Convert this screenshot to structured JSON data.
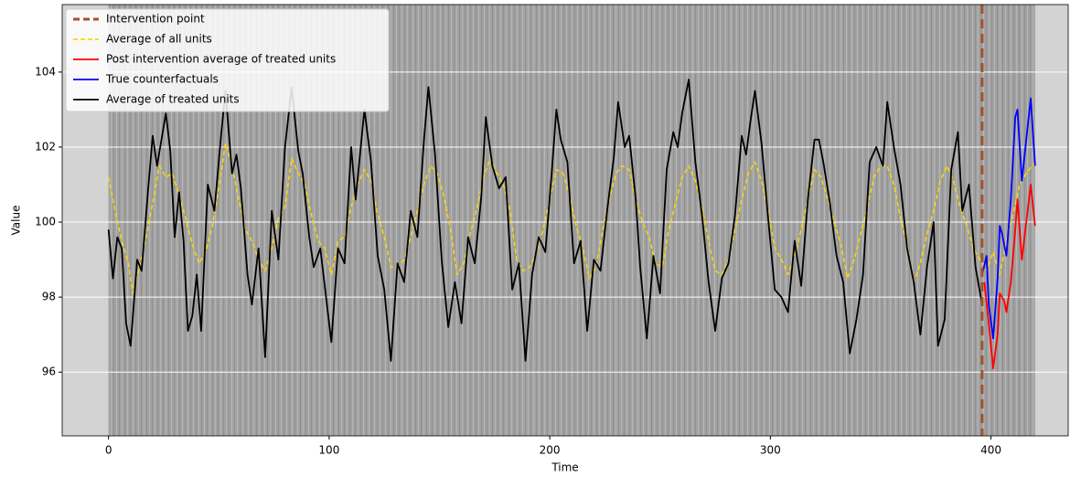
{
  "chart_data": {
    "type": "line",
    "xlabel": "Time",
    "ylabel": "Value",
    "xlim": [
      -21,
      435
    ],
    "ylim": [
      94.3,
      105.8
    ],
    "xticks": [
      0,
      100,
      200,
      300,
      400
    ],
    "yticks": [
      96,
      98,
      100,
      102,
      104
    ],
    "grid": true,
    "legend": "upper left",
    "intervention": {
      "name": "Intervention point",
      "x": 396,
      "color": "#a0522d"
    },
    "series": [
      {
        "name": "Average of all units",
        "color": "#ffd700",
        "dashed": true,
        "x": [
          0,
          3,
          6,
          9,
          11,
          14,
          17,
          20,
          23,
          26,
          29,
          32,
          35,
          38,
          41,
          44,
          47,
          50,
          53,
          56,
          59,
          62,
          65,
          68,
          71,
          74,
          77,
          80,
          83,
          86,
          89,
          92,
          95,
          98,
          101,
          104,
          107,
          110,
          113,
          116,
          119,
          122,
          125,
          128,
          131,
          134,
          137,
          140,
          143,
          146,
          149,
          152,
          155,
          158,
          161,
          164,
          167,
          170,
          173,
          176,
          179,
          182,
          185,
          188,
          191,
          194,
          197,
          200,
          203,
          206,
          209,
          212,
          215,
          218,
          221,
          224,
          227,
          230,
          233,
          236,
          239,
          242,
          245,
          248,
          251,
          254,
          257,
          260,
          263,
          266,
          269,
          272,
          275,
          278,
          281,
          284,
          287,
          290,
          293,
          296,
          299,
          302,
          305,
          308,
          311,
          314,
          317,
          320,
          323,
          326,
          329,
          332,
          335,
          338,
          341,
          344,
          347,
          350,
          353,
          356,
          359,
          362,
          365,
          368,
          371,
          374,
          377,
          380,
          383,
          386,
          389,
          392,
          395,
          398,
          401,
          404,
          407,
          410,
          413,
          416,
          420
        ],
        "values": [
          101.2,
          100.3,
          99.5,
          98.9,
          98.1,
          98.8,
          99.6,
          100.5,
          101.5,
          101.2,
          101.3,
          100.7,
          100.1,
          99.4,
          98.9,
          99.2,
          99.9,
          100.9,
          102.1,
          101.5,
          100.6,
          99.8,
          99.5,
          99.0,
          98.7,
          99.3,
          100.1,
          100.4,
          101.7,
          101.3,
          101.0,
          100.2,
          99.5,
          99.3,
          98.6,
          99.5,
          99.6,
          100.4,
          101.0,
          101.4,
          101.1,
          100.2,
          99.6,
          98.8,
          98.8,
          99.0,
          99.6,
          100.3,
          101.0,
          101.5,
          101.3,
          100.7,
          99.8,
          98.6,
          98.9,
          99.7,
          100.4,
          101.2,
          101.7,
          101.3,
          101.0,
          100.3,
          99.0,
          98.7,
          98.8,
          99.2,
          99.8,
          100.6,
          101.4,
          101.3,
          100.7,
          99.9,
          99.3,
          98.5,
          98.8,
          99.8,
          100.6,
          101.3,
          101.5,
          101.4,
          100.6,
          100.0,
          99.6,
          98.9,
          98.8,
          99.8,
          100.5,
          101.2,
          101.5,
          101.1,
          100.4,
          99.5,
          98.7,
          98.6,
          99.0,
          99.8,
          100.6,
          101.3,
          101.6,
          101.1,
          100.3,
          99.3,
          99.0,
          98.6,
          99.1,
          99.8,
          100.6,
          101.4,
          101.2,
          100.6,
          100.0,
          99.4,
          98.5,
          99.0,
          99.7,
          100.4,
          101.2,
          101.5,
          101.5,
          101.0,
          100.1,
          99.4,
          98.4,
          98.9,
          99.7,
          100.3,
          101.1,
          101.5,
          101.1,
          100.4,
          99.9,
          99.3,
          99.0,
          98.7,
          99.2,
          98.6,
          99.5,
          100.2,
          101.0,
          101.3,
          101.6
        ]
      },
      {
        "name": "Post intervention average of treated units",
        "color": "#ff0000",
        "x": [
          397,
          399,
          401,
          403,
          404,
          406,
          407,
          409,
          411,
          412,
          414,
          416,
          418,
          420
        ],
        "values": [
          98.4,
          97.3,
          96.1,
          97.0,
          98.1,
          97.9,
          97.6,
          98.4,
          99.8,
          100.6,
          99.0,
          100.0,
          101.0,
          99.9
        ]
      },
      {
        "name": "True counterfactuals",
        "color": "#0000ff",
        "x": [
          396,
          398,
          399,
          401,
          403,
          404,
          405,
          407,
          409,
          411,
          412,
          414,
          416,
          418,
          420
        ],
        "values": [
          98.6,
          99.1,
          97.8,
          96.9,
          98.5,
          99.9,
          99.7,
          99.1,
          100.6,
          102.8,
          103.0,
          101.1,
          102.2,
          103.3,
          101.5
        ]
      },
      {
        "name": "Average of treated units",
        "color": "#000000",
        "x": [
          0,
          2,
          4,
          6,
          8,
          10,
          13,
          15,
          18,
          20,
          22,
          24,
          26,
          28,
          30,
          32,
          34,
          36,
          38,
          40,
          42,
          45,
          48,
          51,
          53,
          56,
          58,
          60,
          63,
          65,
          68,
          71,
          74,
          77,
          80,
          83,
          86,
          88,
          91,
          93,
          96,
          98,
          101,
          104,
          107,
          110,
          112,
          114,
          116,
          119,
          122,
          125,
          128,
          131,
          134,
          137,
          140,
          143,
          145,
          148,
          151,
          154,
          157,
          160,
          163,
          166,
          169,
          171,
          174,
          177,
          180,
          183,
          186,
          189,
          192,
          195,
          198,
          201,
          203,
          205,
          208,
          211,
          214,
          217,
          220,
          223,
          226,
          229,
          231,
          234,
          236,
          239,
          241,
          244,
          247,
          250,
          253,
          256,
          258,
          260,
          263,
          266,
          269,
          272,
          275,
          278,
          281,
          284,
          287,
          289,
          291,
          293,
          296,
          299,
          302,
          305,
          308,
          311,
          314,
          317,
          320,
          322,
          324,
          327,
          330,
          333,
          336,
          339,
          342,
          345,
          348,
          351,
          353,
          356,
          359,
          362,
          365,
          368,
          371,
          374,
          376,
          379,
          382,
          385,
          387,
          390,
          393,
          396
        ],
        "values": [
          99.8,
          98.5,
          99.6,
          99.3,
          97.3,
          96.7,
          99.0,
          98.7,
          100.9,
          102.3,
          101.5,
          102.2,
          102.9,
          101.9,
          99.6,
          100.8,
          99.5,
          97.1,
          97.5,
          98.6,
          97.1,
          101.0,
          100.3,
          102.3,
          103.5,
          101.3,
          101.8,
          100.9,
          98.6,
          97.8,
          99.3,
          96.4,
          100.3,
          99.0,
          102.0,
          103.6,
          101.9,
          101.3,
          99.6,
          98.8,
          99.3,
          98.3,
          96.8,
          99.3,
          98.9,
          102.0,
          100.6,
          101.8,
          103.0,
          101.6,
          99.1,
          98.2,
          96.3,
          98.9,
          98.4,
          100.3,
          99.6,
          102.2,
          103.6,
          101.8,
          99.0,
          97.2,
          98.4,
          97.3,
          99.6,
          98.9,
          100.7,
          102.8,
          101.5,
          100.9,
          101.2,
          98.2,
          98.9,
          96.3,
          98.6,
          99.6,
          99.2,
          101.4,
          103.0,
          102.2,
          101.6,
          98.9,
          99.5,
          97.1,
          99.0,
          98.7,
          100.3,
          101.7,
          103.2,
          102.0,
          102.3,
          100.6,
          98.8,
          96.9,
          99.1,
          98.1,
          101.4,
          102.4,
          102.0,
          102.9,
          103.8,
          101.6,
          100.2,
          98.4,
          97.1,
          98.5,
          98.9,
          100.2,
          102.3,
          101.8,
          102.7,
          103.5,
          102.1,
          100.1,
          98.2,
          98.0,
          97.6,
          99.5,
          98.3,
          100.6,
          102.2,
          102.2,
          101.6,
          100.5,
          99.1,
          98.4,
          96.5,
          97.4,
          98.6,
          101.6,
          102.0,
          101.5,
          103.2,
          102.0,
          101.0,
          99.3,
          98.4,
          97.0,
          98.8,
          100.0,
          96.7,
          97.4,
          101.4,
          102.4,
          100.3,
          101.0,
          98.8,
          97.8
        ]
      }
    ]
  }
}
